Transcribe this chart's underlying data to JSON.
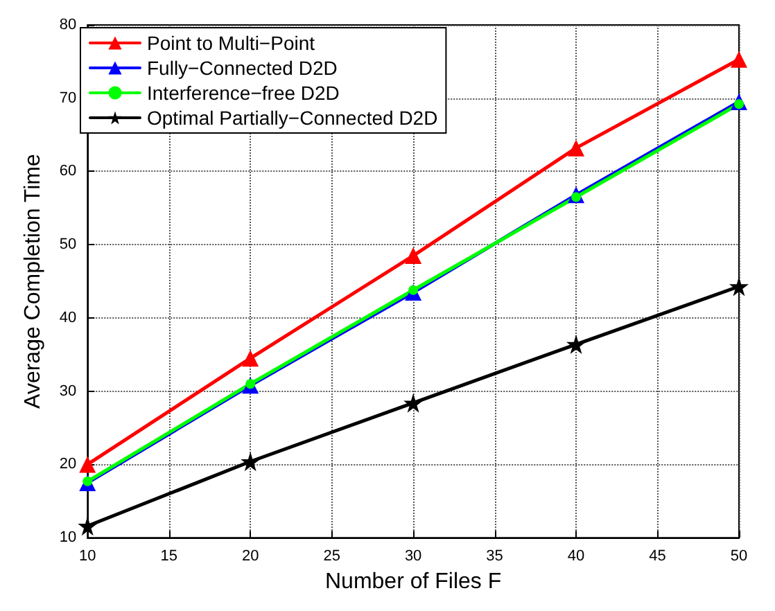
{
  "chart_data": {
    "type": "line",
    "xlabel": "Number of Files F",
    "ylabel": "Average Completion Time",
    "x": [
      10,
      20,
      30,
      40,
      50
    ],
    "series": [
      {
        "name": "Point to Multi−Point",
        "color": "#ff0000",
        "marker": "triangle",
        "values": [
          20,
          34.5,
          48.5,
          63.2,
          75.3
        ]
      },
      {
        "name": "Fully−Connected D2D",
        "color": "#0000ff",
        "marker": "triangle",
        "values": [
          17.5,
          30.8,
          43.5,
          56.8,
          69.5
        ]
      },
      {
        "name": "Interference−free D2D",
        "color": "#00ff00",
        "marker": "circle",
        "values": [
          17.7,
          31,
          43.8,
          56.5,
          69.2
        ]
      },
      {
        "name": "Optimal Partially−Connected D2D",
        "color": "#000000",
        "marker": "star",
        "values": [
          11.6,
          20.4,
          28.4,
          36.4,
          44.3
        ]
      }
    ],
    "xlim": [
      10,
      50
    ],
    "xticks": [
      10,
      15,
      20,
      25,
      30,
      35,
      40,
      45,
      50
    ],
    "ylim": [
      10,
      80
    ],
    "yticks": [
      10,
      20,
      30,
      40,
      50,
      60,
      70,
      80
    ],
    "grid": true,
    "legend": "top left",
    "line_style": "solid"
  }
}
